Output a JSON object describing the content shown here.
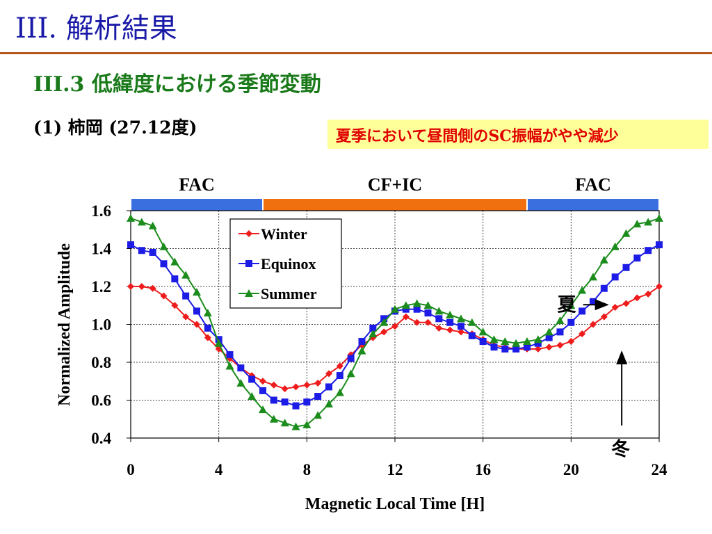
{
  "slide": {
    "title": "III. 解析結果",
    "subtitle": "III.3 低緯度における季節変動",
    "station": "(1) 柿岡 (27.12度)",
    "note": "夏季において昼間側のSC振幅がやや減少"
  },
  "chart_data": {
    "type": "line",
    "xlabel": "Magnetic Local Time [H]",
    "ylabel": "Normalized Amplitude",
    "xlim": [
      0,
      24
    ],
    "ylim": [
      0.4,
      1.6
    ],
    "xticks": [
      0,
      4,
      8,
      12,
      16,
      20,
      24
    ],
    "yticks": [
      0.4,
      0.6,
      0.8,
      1.0,
      1.2,
      1.4,
      1.6
    ],
    "ytick_labels": [
      "0.4",
      "0.6",
      "0.8",
      "1.0",
      "1.2",
      "1.4",
      "1.6"
    ],
    "grid": true,
    "legend": "top-left",
    "regions": [
      {
        "label": "FAC",
        "from": 0,
        "to": 6,
        "color": "#3a6fe0"
      },
      {
        "label": "CF+IC",
        "from": 6,
        "to": 18,
        "color": "#f07010"
      },
      {
        "label": "FAC",
        "from": 18,
        "to": 24,
        "color": "#3a6fe0"
      }
    ],
    "x": [
      0,
      0.5,
      1,
      1.5,
      2,
      2.5,
      3,
      3.5,
      4,
      4.5,
      5,
      5.5,
      6,
      6.5,
      7,
      7.5,
      8,
      8.5,
      9,
      9.5,
      10,
      10.5,
      11,
      11.5,
      12,
      12.5,
      13,
      13.5,
      14,
      14.5,
      15,
      15.5,
      16,
      16.5,
      17,
      17.5,
      18,
      18.5,
      19,
      19.5,
      20,
      20.5,
      21,
      21.5,
      22,
      22.5,
      23,
      23.5,
      24
    ],
    "series": [
      {
        "name": "Winter",
        "color": "#ee1c1c",
        "marker": "diamond",
        "values": [
          1.2,
          1.2,
          1.19,
          1.15,
          1.1,
          1.04,
          1.0,
          0.93,
          0.87,
          0.82,
          0.77,
          0.73,
          0.7,
          0.68,
          0.66,
          0.67,
          0.68,
          0.69,
          0.74,
          0.78,
          0.84,
          0.89,
          0.93,
          0.96,
          0.99,
          1.04,
          1.01,
          1.01,
          0.98,
          0.97,
          0.96,
          0.95,
          0.92,
          0.89,
          0.88,
          0.87,
          0.87,
          0.87,
          0.88,
          0.89,
          0.91,
          0.95,
          1.0,
          1.04,
          1.09,
          1.11,
          1.14,
          1.16,
          1.2
        ]
      },
      {
        "name": "Equinox",
        "color": "#1c1ce6",
        "marker": "square",
        "values": [
          1.42,
          1.39,
          1.38,
          1.32,
          1.24,
          1.15,
          1.07,
          0.98,
          0.92,
          0.84,
          0.77,
          0.71,
          0.65,
          0.6,
          0.59,
          0.57,
          0.59,
          0.62,
          0.67,
          0.73,
          0.82,
          0.91,
          0.98,
          1.03,
          1.07,
          1.08,
          1.08,
          1.06,
          1.03,
          1.01,
          0.99,
          0.94,
          0.91,
          0.88,
          0.87,
          0.87,
          0.88,
          0.9,
          0.93,
          0.96,
          1.01,
          1.07,
          1.12,
          1.19,
          1.25,
          1.3,
          1.35,
          1.39,
          1.42
        ]
      },
      {
        "name": "Summer",
        "color": "#1c8c1c",
        "marker": "triangle",
        "values": [
          1.56,
          1.54,
          1.52,
          1.41,
          1.33,
          1.26,
          1.17,
          1.06,
          0.9,
          0.78,
          0.69,
          0.62,
          0.55,
          0.5,
          0.48,
          0.46,
          0.47,
          0.52,
          0.58,
          0.64,
          0.74,
          0.86,
          0.95,
          1.01,
          1.08,
          1.1,
          1.11,
          1.1,
          1.07,
          1.05,
          1.03,
          1.01,
          0.96,
          0.92,
          0.91,
          0.9,
          0.91,
          0.92,
          0.96,
          1.02,
          1.1,
          1.18,
          1.25,
          1.34,
          1.41,
          1.48,
          1.53,
          1.54,
          1.56
        ]
      }
    ],
    "annotations": [
      {
        "text": "夏",
        "x": 22.0,
        "y": 1.1
      },
      {
        "text": "冬",
        "x": 22.3,
        "y": 0.91
      }
    ]
  }
}
